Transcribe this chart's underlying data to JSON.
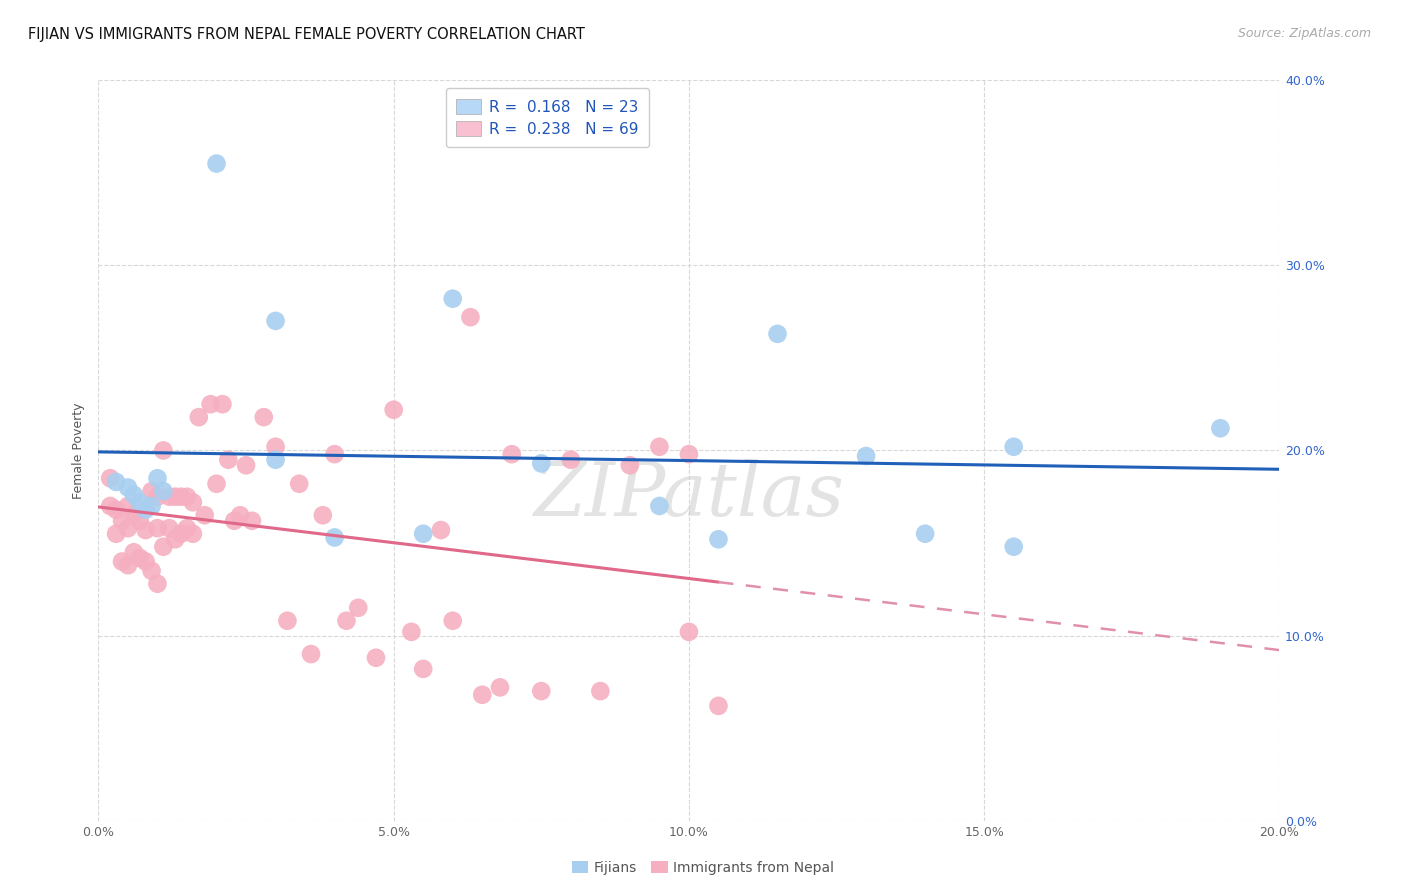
{
  "title": "FIJIAN VS IMMIGRANTS FROM NEPAL FEMALE POVERTY CORRELATION CHART",
  "source": "Source: ZipAtlas.com",
  "ylabel": "Female Poverty",
  "x_min": 0.0,
  "x_max": 0.2,
  "y_min": 0.0,
  "y_max": 0.4,
  "fijian_color": "#a8cff0",
  "nepal_color": "#f5afc0",
  "fijian_line_color": "#2060b8",
  "nepal_line_color": "#e06888",
  "nepal_line_dashed_color": "#e090a8",
  "legend_box_fijian": "#b8d8f8",
  "legend_box_nepal": "#f8c0d0",
  "R_fijian": 0.168,
  "N_fijian": 23,
  "R_nepal": 0.238,
  "N_nepal": 69,
  "fijian_x": [
    0.003,
    0.005,
    0.006,
    0.007,
    0.008,
    0.009,
    0.01,
    0.011,
    0.02,
    0.03,
    0.03,
    0.04,
    0.055,
    0.06,
    0.075,
    0.095,
    0.105,
    0.115,
    0.13,
    0.14,
    0.155,
    0.155,
    0.19
  ],
  "fijian_y": [
    0.183,
    0.18,
    0.176,
    0.172,
    0.168,
    0.17,
    0.185,
    0.178,
    0.355,
    0.195,
    0.27,
    0.153,
    0.155,
    0.282,
    0.193,
    0.17,
    0.152,
    0.263,
    0.197,
    0.155,
    0.202,
    0.148,
    0.212
  ],
  "nepal_x": [
    0.002,
    0.002,
    0.003,
    0.003,
    0.004,
    0.004,
    0.005,
    0.005,
    0.005,
    0.006,
    0.006,
    0.007,
    0.007,
    0.008,
    0.008,
    0.009,
    0.009,
    0.01,
    0.01,
    0.01,
    0.011,
    0.011,
    0.012,
    0.012,
    0.013,
    0.013,
    0.014,
    0.014,
    0.015,
    0.015,
    0.016,
    0.016,
    0.017,
    0.018,
    0.019,
    0.02,
    0.021,
    0.022,
    0.023,
    0.024,
    0.025,
    0.026,
    0.028,
    0.03,
    0.032,
    0.034,
    0.036,
    0.038,
    0.04,
    0.042,
    0.044,
    0.047,
    0.05,
    0.053,
    0.055,
    0.058,
    0.06,
    0.063,
    0.065,
    0.068,
    0.07,
    0.075,
    0.08,
    0.085,
    0.09,
    0.095,
    0.1,
    0.1,
    0.105
  ],
  "nepal_y": [
    0.185,
    0.17,
    0.168,
    0.155,
    0.162,
    0.14,
    0.17,
    0.158,
    0.138,
    0.165,
    0.145,
    0.162,
    0.142,
    0.157,
    0.14,
    0.178,
    0.135,
    0.175,
    0.158,
    0.128,
    0.2,
    0.148,
    0.175,
    0.158,
    0.175,
    0.152,
    0.175,
    0.155,
    0.175,
    0.158,
    0.172,
    0.155,
    0.218,
    0.165,
    0.225,
    0.182,
    0.225,
    0.195,
    0.162,
    0.165,
    0.192,
    0.162,
    0.218,
    0.202,
    0.108,
    0.182,
    0.09,
    0.165,
    0.198,
    0.108,
    0.115,
    0.088,
    0.222,
    0.102,
    0.082,
    0.157,
    0.108,
    0.272,
    0.068,
    0.072,
    0.198,
    0.07,
    0.195,
    0.07,
    0.192,
    0.202,
    0.198,
    0.102,
    0.062
  ],
  "background_color": "#ffffff",
  "grid_color": "#d8d8d8",
  "watermark": "ZIPatlas",
  "title_fontsize": 10.5,
  "ylabel_fontsize": 9,
  "tick_fontsize": 9,
  "legend_fontsize": 11,
  "source_fontsize": 9,
  "nepal_line_max_x": 0.105,
  "fijian_line_max_x": 0.19
}
